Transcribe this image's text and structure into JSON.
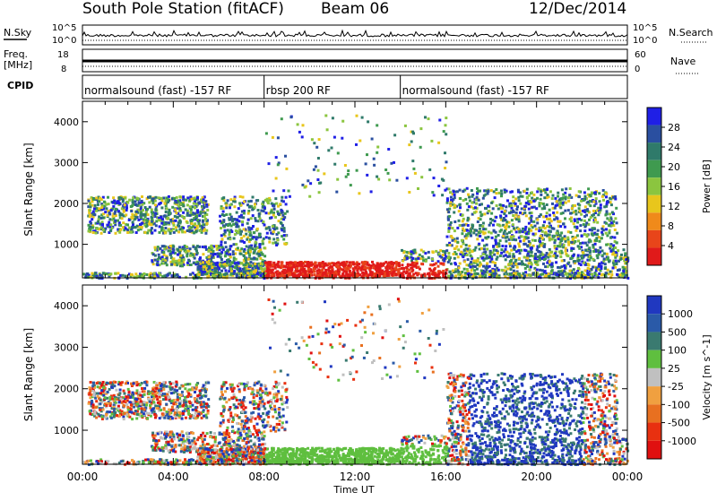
{
  "header": {
    "station": "South Pole Station (fitACF)",
    "beam": "Beam 06",
    "date": "12/Dec/2014"
  },
  "strips": {
    "nsky_label": "N.Sky",
    "nsky_ticks": [
      "10^5",
      "10^0"
    ],
    "nsearch_label": "N.Search",
    "nsearch_ticks": [
      "10^5",
      "10^0"
    ],
    "freq_label": "Freq.",
    "freq_unit": "[MHz]",
    "freq_ticks": [
      "18",
      "8"
    ],
    "nave_label": "Nave",
    "nave_ticks": [
      "60",
      "0"
    ],
    "cpid_label": "CPID"
  },
  "cpid_segments": [
    {
      "label": "normalsound (fast) -157 RF",
      "start_hour": 0,
      "end_hour": 8
    },
    {
      "label": "rbsp 200 RF",
      "start_hour": 8,
      "end_hour": 14
    },
    {
      "label": "normalsound (fast) -157 RF",
      "start_hour": 14,
      "end_hour": 24
    }
  ],
  "x_axis": {
    "title": "Time UT",
    "ticks": [
      "00:00",
      "04:00",
      "08:00",
      "12:00",
      "16:00",
      "20:00",
      "00:00"
    ]
  },
  "chart_data": [
    {
      "type": "heatmap",
      "panel": "power",
      "ylabel": "Slant Range [km]",
      "yticks": [
        1000,
        2000,
        3000,
        4000
      ],
      "ylim": [
        180,
        4500
      ],
      "xlim": [
        0,
        24
      ],
      "colorbar_label": "Power [dB]",
      "colorbar_ticks": [
        "28",
        "24",
        "20",
        "16",
        "12",
        "8",
        "4"
      ],
      "colors": [
        "#1f1fe6",
        "#2a4fa0",
        "#2f7a6a",
        "#3f9a4f",
        "#8bc53f",
        "#e8c61c",
        "#f08a1a",
        "#e8451a",
        "#e01a1a"
      ]
    },
    {
      "type": "heatmap",
      "panel": "velocity",
      "ylabel": "Slant Range [km]",
      "yticks": [
        1000,
        2000,
        3000,
        4000
      ],
      "ylim": [
        180,
        4500
      ],
      "xlim": [
        0,
        24
      ],
      "colorbar_label": "Velocity [m s^-1]",
      "colorbar_ticks": [
        "1000",
        "500",
        "100",
        "25",
        "-25",
        "-100",
        "-500",
        "-1000"
      ],
      "colors": [
        "#2038c0",
        "#2a5aa8",
        "#3a7a70",
        "#5fbf3f",
        "#c0c0c0",
        "#f0a040",
        "#e87020",
        "#e83010",
        "#e01010"
      ]
    }
  ]
}
